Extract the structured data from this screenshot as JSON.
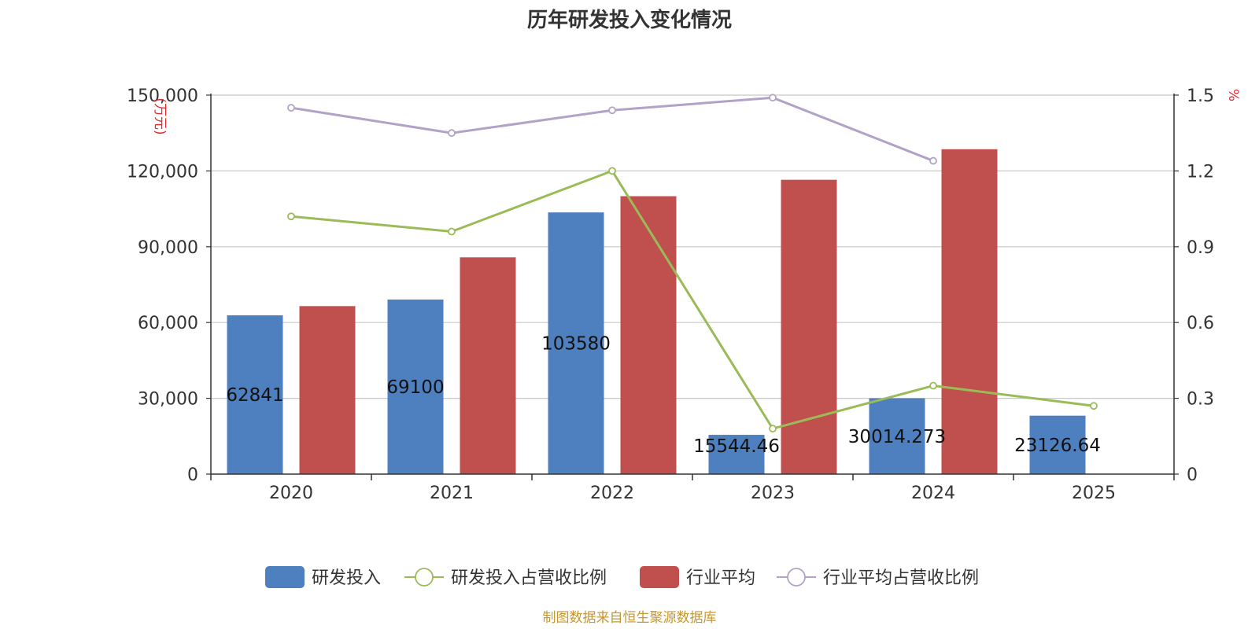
{
  "chart_data": {
    "type": "bar",
    "title": "历年研发投入变化情况",
    "categories": [
      "2020",
      "2021",
      "2022",
      "2023",
      "2024",
      "2025"
    ],
    "y_left": {
      "unit": "(万元)",
      "min": 0,
      "max": 150000,
      "ticks": [
        0,
        30000,
        60000,
        90000,
        120000,
        150000
      ],
      "tick_labels": [
        "0",
        "30,000",
        "60,000",
        "90,000",
        "120,000",
        "150,000"
      ]
    },
    "y_right": {
      "unit": "%",
      "min": 0,
      "max": 1.5,
      "ticks": [
        0,
        0.3,
        0.6,
        0.9,
        1.2,
        1.5
      ],
      "tick_labels": [
        "0",
        "0.3",
        "0.6",
        "0.9",
        "1.2",
        "1.5"
      ]
    },
    "series": [
      {
        "name": "研发投入",
        "kind": "bar",
        "axis": "left",
        "color": "#4e7fbf",
        "values": [
          62841,
          69100,
          103580,
          15544.46,
          30014.273,
          23126.64
        ],
        "labels": [
          "62841",
          "69100",
          "103580",
          "15544.46",
          "30014.273",
          "23126.64"
        ]
      },
      {
        "name": "研发投入占营收比例",
        "kind": "line",
        "axis": "right",
        "color": "#9bbb59",
        "values": [
          1.02,
          0.96,
          1.2,
          0.18,
          0.35,
          0.27
        ]
      },
      {
        "name": "行业平均",
        "kind": "bar",
        "axis": "left",
        "color": "#c0504d",
        "values": [
          66500,
          85800,
          110000,
          116500,
          128600,
          null
        ]
      },
      {
        "name": "行业平均占营收比例",
        "kind": "line",
        "axis": "right",
        "color": "#b3a2c7",
        "values": [
          1.45,
          1.35,
          1.44,
          1.49,
          1.24,
          null
        ]
      }
    ],
    "grid": true,
    "legend_position": "bottom"
  },
  "source_text": "制图数据来自恒生聚源数据库"
}
